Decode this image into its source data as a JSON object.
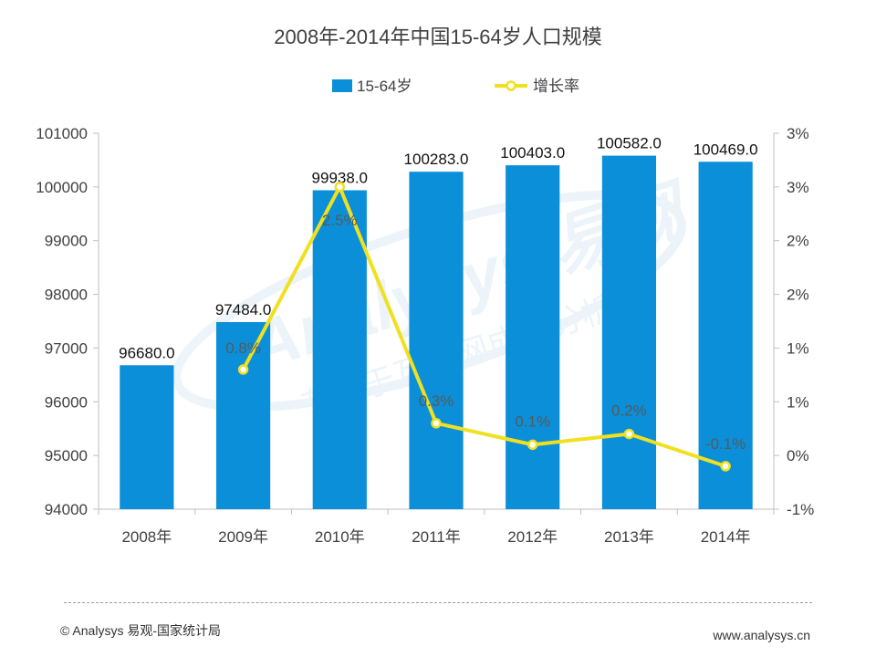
{
  "chart_data": {
    "type": "bar",
    "title": "2008年-2014年中国15-64岁人口规模",
    "categories": [
      "2008年",
      "2009年",
      "2010年",
      "2011年",
      "2012年",
      "2013年",
      "2014年"
    ],
    "series": [
      {
        "name": "15-64岁",
        "type": "bar",
        "axis": "left",
        "values": [
          96680.0,
          97484.0,
          99938.0,
          100283.0,
          100403.0,
          100582.0,
          100469.0
        ],
        "labels": [
          "96680.0",
          "97484.0",
          "99938.0",
          "100283.0",
          "100403.0",
          "100582.0",
          "100469.0"
        ],
        "color": "#0b8fd8"
      },
      {
        "name": "增长率",
        "type": "line",
        "axis": "right",
        "values": [
          null,
          0.8,
          2.5,
          0.3,
          0.1,
          0.2,
          -0.1
        ],
        "labels": [
          "",
          "0.8%",
          "2.5%",
          "0.3%",
          "0.1%",
          "0.2%",
          "-0.1%"
        ],
        "color": "#f0e020"
      }
    ],
    "y_left": {
      "ylim": [
        94000,
        101000
      ],
      "ticks": [
        "94000",
        "95000",
        "96000",
        "97000",
        "98000",
        "99000",
        "100000",
        "101000"
      ]
    },
    "y_right": {
      "ylim": [
        -0.5,
        3.0
      ],
      "ticks": [
        "-1%",
        "0%",
        "1%",
        "1%",
        "2%",
        "2%",
        "3%",
        "3%"
      ]
    },
    "legend_position": "top-center",
    "grid": false
  },
  "watermark": {
    "logo_text": "Analysys 易观",
    "slogan": "专注于互联网成长分析"
  },
  "footer": {
    "copyright": "© Analysys 易观-国家统计局",
    "website": "www.analysys.cn"
  }
}
